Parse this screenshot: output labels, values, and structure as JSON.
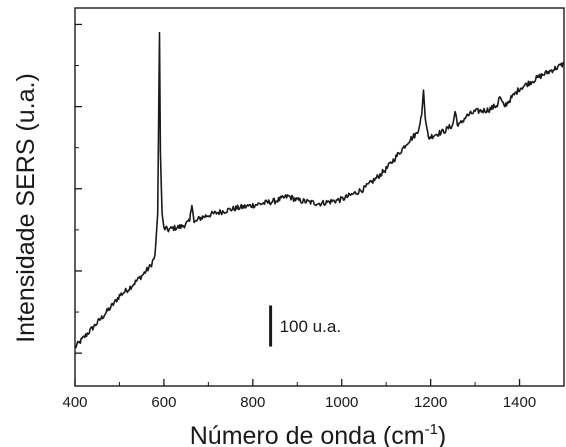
{
  "chart_data": {
    "type": "line",
    "xlabel": "Número de onda (cm",
    "xlabel_superscript": "-1",
    "xlabel_close": ")",
    "ylabel": "Intensidade SERS (u.a.)",
    "xlim": [
      400,
      1500
    ],
    "ylim": [
      -40,
      420
    ],
    "x_ticks": [
      400,
      600,
      800,
      1000,
      1200,
      1400
    ],
    "y_ticks_unlabeled": [
      0,
      100,
      200,
      300,
      400
    ],
    "grid": false,
    "legend": "none",
    "line_color": "#1a1a1a",
    "scale_bar": {
      "label": "100 u.a.",
      "x": 840,
      "y_bottom": 8,
      "height": 50
    },
    "series": [
      {
        "x": [
          400,
          430,
          460,
          490,
          500,
          520,
          550,
          570,
          580,
          586,
          590,
          592,
          596,
          600,
          610,
          620,
          640,
          658,
          663,
          668,
          680,
          700,
          750,
          800,
          850,
          880,
          900,
          950,
          1000,
          1050,
          1080,
          1100,
          1130,
          1150,
          1170,
          1180,
          1184,
          1188,
          1195,
          1210,
          1230,
          1250,
          1255,
          1262,
          1280,
          1300,
          1330,
          1350,
          1355,
          1365,
          1400,
          1450,
          1500
        ],
        "y": [
          7,
          25,
          43,
          62,
          70,
          78,
          94,
          106,
          118,
          170,
          390,
          245,
          170,
          152,
          150,
          152,
          154,
          160,
          183,
          158,
          164,
          168,
          175,
          180,
          185,
          191,
          186,
          182,
          187,
          200,
          214,
          224,
          244,
          258,
          268,
          290,
          320,
          285,
          262,
          266,
          270,
          278,
          294,
          276,
          288,
          294,
          296,
          302,
          312,
          300,
          322,
          338,
          352
        ]
      }
    ]
  }
}
